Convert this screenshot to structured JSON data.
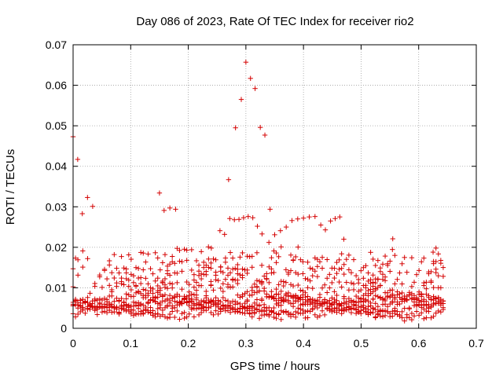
{
  "chart_data": {
    "type": "scatter",
    "title": "Day 086 of 2023, Rate Of TEC Index for receiver rio2",
    "xlabel": "GPS time / hours",
    "ylabel": "ROTI / TECUs",
    "xlim": [
      0,
      0.7
    ],
    "ylim": [
      0,
      0.07
    ],
    "x_ticks": [
      "0",
      "0.1",
      "0.2",
      "0.3",
      "0.4",
      "0.5",
      "0.6",
      "0.7"
    ],
    "y_ticks": [
      "0",
      "0.01",
      "0.02",
      "0.03",
      "0.04",
      "0.05",
      "0.06",
      "0.07"
    ],
    "grid": true,
    "marker": "+",
    "marker_color": "#d40000",
    "outliers": [
      {
        "x": 0.0,
        "y": 0.0473
      },
      {
        "x": 0.008,
        "y": 0.0417
      },
      {
        "x": 0.016,
        "y": 0.0283
      },
      {
        "x": 0.025,
        "y": 0.0323
      },
      {
        "x": 0.034,
        "y": 0.0301
      },
      {
        "x": 0.15,
        "y": 0.0334
      },
      {
        "x": 0.158,
        "y": 0.0291
      },
      {
        "x": 0.168,
        "y": 0.0297
      },
      {
        "x": 0.178,
        "y": 0.0294
      },
      {
        "x": 0.27,
        "y": 0.0367
      },
      {
        "x": 0.282,
        "y": 0.0495
      },
      {
        "x": 0.292,
        "y": 0.0565
      },
      {
        "x": 0.3,
        "y": 0.0657
      },
      {
        "x": 0.308,
        "y": 0.0617
      },
      {
        "x": 0.316,
        "y": 0.0592
      },
      {
        "x": 0.325,
        "y": 0.0496
      },
      {
        "x": 0.333,
        "y": 0.0477
      },
      {
        "x": 0.342,
        "y": 0.0294
      },
      {
        "x": 0.272,
        "y": 0.0271
      },
      {
        "x": 0.28,
        "y": 0.0268
      },
      {
        "x": 0.288,
        "y": 0.0269
      },
      {
        "x": 0.296,
        "y": 0.0273
      },
      {
        "x": 0.304,
        "y": 0.0276
      },
      {
        "x": 0.312,
        "y": 0.0273
      },
      {
        "x": 0.32,
        "y": 0.0252
      },
      {
        "x": 0.328,
        "y": 0.0233
      },
      {
        "x": 0.34,
        "y": 0.0212
      },
      {
        "x": 0.35,
        "y": 0.0231
      },
      {
        "x": 0.36,
        "y": 0.0241
      },
      {
        "x": 0.37,
        "y": 0.025
      },
      {
        "x": 0.38,
        "y": 0.0266
      },
      {
        "x": 0.39,
        "y": 0.027
      },
      {
        "x": 0.4,
        "y": 0.0272
      },
      {
        "x": 0.41,
        "y": 0.0275
      },
      {
        "x": 0.42,
        "y": 0.0276
      },
      {
        "x": 0.43,
        "y": 0.0255
      },
      {
        "x": 0.438,
        "y": 0.0243
      },
      {
        "x": 0.447,
        "y": 0.0265
      },
      {
        "x": 0.455,
        "y": 0.0271
      },
      {
        "x": 0.463,
        "y": 0.0275
      },
      {
        "x": 0.47,
        "y": 0.022
      },
      {
        "x": 0.255,
        "y": 0.0241
      },
      {
        "x": 0.263,
        "y": 0.0232
      },
      {
        "x": 0.235,
        "y": 0.0201
      },
      {
        "x": 0.24,
        "y": 0.0198
      },
      {
        "x": 0.555,
        "y": 0.0221
      },
      {
        "x": 0.63,
        "y": 0.0198
      },
      {
        "x": 0.625,
        "y": 0.0188
      }
    ]
  }
}
